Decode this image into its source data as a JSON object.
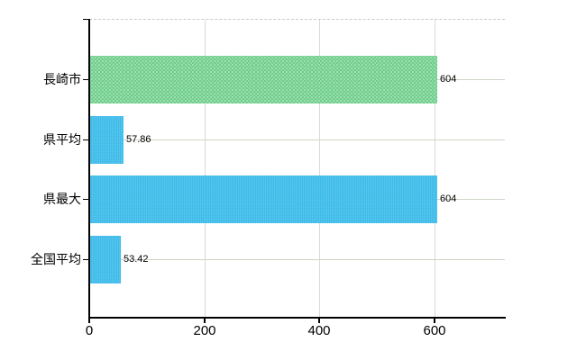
{
  "chart_data": {
    "type": "bar",
    "orientation": "horizontal",
    "title": "",
    "categories": [
      "長崎市",
      "県平均",
      "県最大",
      "全国平均"
    ],
    "values": [
      604,
      57.86,
      604,
      53.42
    ],
    "value_labels": [
      "604",
      "57.86",
      "604",
      "53.42"
    ],
    "bar_color_names": [
      "green",
      "blue",
      "blue",
      "blue"
    ],
    "x_ticks": [
      0,
      200,
      400,
      600
    ],
    "x_tick_labels": [
      "0",
      "200",
      "400",
      "600"
    ],
    "xlim": [
      0,
      723
    ],
    "legend": null,
    "grid": {
      "vertical_gridlines": true,
      "horizontal_category_lines": true,
      "top_border_style": "dashed"
    },
    "colors": {
      "green_bar": "#6FCE8B",
      "blue_bar": "#3EBFEE",
      "vertical_gridline": "#d9d9d9",
      "category_line": "#cdd6c8",
      "top_border": "#cccccc",
      "axis": "#000000",
      "text": "#000000",
      "background": "#ffffff"
    }
  }
}
